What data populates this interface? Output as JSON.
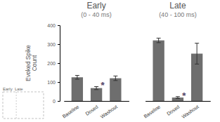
{
  "chart_data": {
    "type": "bar",
    "groups": [
      {
        "title": "Early",
        "subtitle": "(0 - 40 ms)",
        "categories": [
          "Baseline",
          "Dosed",
          "Washout"
        ],
        "values": [
          125,
          68,
          120
        ],
        "errors": [
          10,
          8,
          12
        ]
      },
      {
        "title": "Late",
        "subtitle": "(40 - 100 ms)",
        "categories": [
          "Baseline",
          "Dosed",
          "Washout"
        ],
        "values": [
          320,
          18,
          250
        ],
        "errors": [
          12,
          5,
          55
        ]
      }
    ],
    "ylabel": "Evoked Spike\nCount",
    "color": "#6e6e6e",
    "ylim": [
      0,
      400
    ],
    "yticks": [
      0,
      100,
      200,
      300,
      400
    ],
    "grid": false,
    "annotations": [
      {
        "text": "*",
        "group": "Early",
        "category": "Dosed",
        "colors": [
          "#cc5500",
          "#0055cc"
        ]
      },
      {
        "text": "*",
        "group": "Late",
        "category": "Dosed",
        "colors": [
          "#cc5500",
          "#0055cc"
        ]
      }
    ],
    "inset_label": "Early  Late"
  }
}
